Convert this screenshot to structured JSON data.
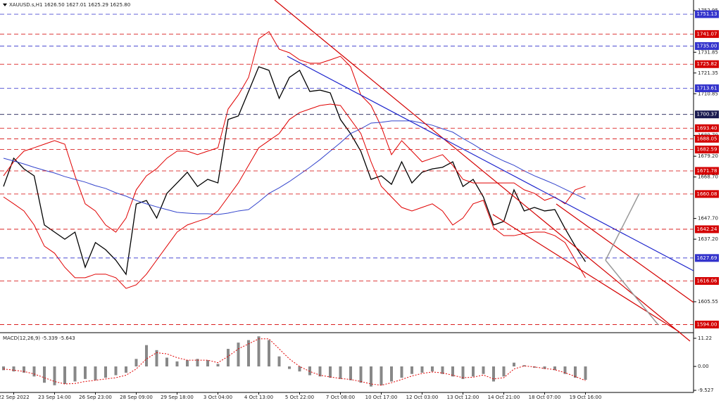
{
  "chart_data": [
    {
      "type": "line",
      "title": "XAUUSD.s,H1  1626.50 1627.01 1625.29 1625.80",
      "categories": [
        null,
        "22 Sep 2022",
        null,
        null,
        null,
        "23 Sep 14:00",
        null,
        null,
        null,
        "26 Sep 23:00",
        null,
        null,
        null,
        "28 Sep 09:00",
        null,
        null,
        null,
        "29 Sep 18:00",
        null,
        null,
        null,
        "3 Oct 04:00",
        null,
        null,
        null,
        "4 Oct 13:00",
        null,
        null,
        null,
        "5 Oct 22:00",
        null,
        null,
        null,
        "7 Oct 08:00",
        null,
        null,
        null,
        "10 Oct 17:00",
        null,
        null,
        null,
        "12 Oct 03:00",
        null,
        null,
        null,
        "13 Oct 12:00",
        null,
        null,
        null,
        "14 Oct 21:00",
        null,
        null,
        null,
        "18 Oct 07:00",
        null,
        null,
        null,
        "19 Oct 16:00"
      ],
      "series": [
        {
          "color": "#000000",
          "values": [
            1663.9,
            1678.2,
            1672.8,
            1669.3,
            1644.4,
            1640.8,
            1637.2,
            1640.8,
            1623.0,
            1635.5,
            1631.9,
            1626.6,
            1619.4,
            1655.0,
            1656.8,
            1647.9,
            1660.4,
            1665.7,
            1671.1,
            1663.9,
            1667.5,
            1665.7,
            1697.8,
            1699.6,
            1712.0,
            1724.5,
            1722.7,
            1708.5,
            1719.1,
            1722.7,
            1712.0,
            1712.7,
            1711.3,
            1697.8,
            1690.6,
            1681.7,
            1667.5,
            1669.3,
            1665.0,
            1676.4,
            1665.7,
            1671.1,
            1672.8,
            1673.6,
            1676.4,
            1663.9,
            1667.5,
            1658.6,
            1644.4,
            1646.2,
            1662.2,
            1651.5,
            1653.3,
            1651.5,
            1652.2,
            1642.6,
            1633.7,
            1625.8
          ]
        },
        {
          "color": "#e00000",
          "values": [
            1669.3,
            1676.4,
            1681.8,
            1683.5,
            1685.3,
            1687.1,
            1685.3,
            1669.3,
            1655.1,
            1651.5,
            1644.4,
            1640.8,
            1647.9,
            1662.2,
            1669.3,
            1672.9,
            1678.2,
            1681.8,
            1681.8,
            1680.0,
            1681.8,
            1683.5,
            1703.1,
            1710.2,
            1719.1,
            1738.7,
            1742.3,
            1733.4,
            1731.6,
            1728.0,
            1726.3,
            1726.3,
            1728.0,
            1729.8,
            1724.5,
            1710.2,
            1704.9,
            1694.2,
            1680.0,
            1687.1,
            1681.8,
            1676.4,
            1678.2,
            1680.0,
            1674.6,
            1667.5,
            1665.7,
            1665.7,
            1665.7,
            1665.7,
            1665.7,
            1662.2,
            1660.4,
            1656.9,
            1658.6,
            1655.1,
            1662.2,
            1664.0
          ]
        },
        {
          "color": "#e00000",
          "values": [
            1658.6,
            1655.1,
            1651.5,
            1644.4,
            1633.7,
            1630.1,
            1623.0,
            1617.7,
            1617.7,
            1619.5,
            1619.5,
            1617.7,
            1612.3,
            1614.1,
            1619.5,
            1626.6,
            1633.7,
            1640.8,
            1644.4,
            1646.2,
            1647.9,
            1651.5,
            1658.6,
            1665.7,
            1674.6,
            1683.5,
            1687.1,
            1690.7,
            1697.8,
            1701.3,
            1703.1,
            1704.9,
            1705.6,
            1704.9,
            1697.8,
            1690.7,
            1676.4,
            1664.0,
            1658.6,
            1653.3,
            1651.5,
            1653.3,
            1655.1,
            1651.5,
            1644.4,
            1647.9,
            1655.1,
            1656.9,
            1643.0,
            1639.0,
            1639.0,
            1640.1,
            1640.8,
            1640.8,
            1639.0,
            1635.5,
            1626.6,
            1617.7
          ]
        },
        {
          "color": "#3344cc",
          "values": [
            1678.2,
            1676.8,
            1675.3,
            1673.6,
            1672.1,
            1670.7,
            1668.9,
            1667.5,
            1666.1,
            1664.3,
            1662.9,
            1660.7,
            1659.0,
            1656.8,
            1655.1,
            1653.6,
            1652.2,
            1650.8,
            1650.4,
            1650.1,
            1650.1,
            1649.7,
            1650.4,
            1651.5,
            1652.2,
            1656.1,
            1660.4,
            1663.2,
            1666.4,
            1670.0,
            1673.6,
            1677.5,
            1681.8,
            1686.0,
            1690.7,
            1693.1,
            1696.0,
            1696.4,
            1697.1,
            1697.1,
            1697.1,
            1696.0,
            1694.9,
            1693.1,
            1691.4,
            1688.2,
            1685.3,
            1682.1,
            1679.3,
            1676.8,
            1674.6,
            1671.8,
            1669.3,
            1667.2,
            1665.0,
            1662.5,
            1660.0,
            1657.5
          ]
        }
      ],
      "ylim": [
        1590.95,
        1758.3
      ],
      "yticks": [
        1752.95,
        1731.85,
        1721.35,
        1710.85,
        {
          "value": 1689.7,
          "label": "1689.70"
        },
        {
          "value": 1679.2,
          "label": "1679.20"
        },
        {
          "value": 1668.7,
          "label": "1668.70"
        },
        {
          "value": 1647.7,
          "label": "1647.70"
        },
        {
          "value": 1637.2,
          "label": "1637.20"
        },
        1605.55
      ],
      "levels": [
        {
          "value": 1751.13,
          "color": "#3333cc"
        },
        {
          "value": 1741.07,
          "color": "#d40000"
        },
        {
          "value": 1735,
          "label": "1735.00",
          "color": "#3333cc"
        },
        {
          "value": 1725.82,
          "color": "#d40000"
        },
        {
          "value": 1713.61,
          "color": "#3333cc"
        },
        {
          "value": 1700.37,
          "color": "#1a1a50"
        },
        {
          "value": 1693.4,
          "label": "1693.40",
          "color": "#d40000"
        },
        {
          "value": 1688.05,
          "color": "#d40000"
        },
        {
          "value": 1682.59,
          "color": "#d40000"
        },
        {
          "value": 1671.78,
          "color": "#d40000"
        },
        {
          "value": 1660.08,
          "color": "#d40000"
        },
        {
          "value": 1642.24,
          "color": "#d40000"
        },
        {
          "value": 1627.69,
          "color": "#3333cc"
        },
        {
          "value": 1616.06,
          "color": "#d40000"
        },
        {
          "value": 1594,
          "label": "1594.00",
          "color": "#d40000"
        }
      ]
    },
    {
      "type": "bar",
      "title": "MACD(12,26,9) -5.339 -5.643",
      "color": "#888888",
      "values": [
        -1.5,
        -2.0,
        -2.5,
        -4.0,
        -6.5,
        -7.5,
        -7.0,
        -6.0,
        -5.0,
        -5.5,
        -4.5,
        -3.5,
        -2.5,
        3.0,
        8.5,
        6.5,
        3.5,
        2.0,
        2.5,
        3.0,
        2.5,
        1.0,
        7.0,
        9.5,
        10.5,
        12.0,
        10.5,
        4.0,
        -1.0,
        -2.0,
        -3.5,
        -4.0,
        -4.5,
        -5.0,
        -5.5,
        -6.5,
        -8.0,
        -7.5,
        -6.0,
        -4.5,
        -3.0,
        -2.5,
        -2.0,
        -3.0,
        -4.0,
        -5.0,
        -4.0,
        -3.0,
        -6.0,
        -4.0,
        1.5,
        0.5,
        -0.5,
        -1.0,
        -1.5,
        -3.0,
        -4.5,
        -5.339
      ],
      "line_color": "#e00000",
      "line_values": [
        -1,
        -1.5,
        -2,
        -3,
        -4.5,
        -6,
        -7,
        -6.8,
        -6,
        -5.5,
        -5,
        -4.5,
        -3.5,
        -1,
        3,
        5.5,
        5,
        3.5,
        2.5,
        2.5,
        2.5,
        1.5,
        4,
        7,
        9,
        11,
        11,
        7,
        3,
        0,
        -2,
        -3.5,
        -4.2,
        -4.8,
        -5.2,
        -6,
        -7,
        -7.5,
        -6.5,
        -5.2,
        -3.8,
        -2.8,
        -2.2,
        -2.6,
        -3.5,
        -4.5,
        -4.3,
        -3.4,
        -5,
        -4.5,
        -1,
        0.2,
        -0.2,
        -0.8,
        -1.3,
        -2.5,
        -4,
        -5.643
      ],
      "ylim": [
        -10.09,
        12.9
      ],
      "yticks": [
        11.22,
        {
          "value": 0,
          "label": "0.00"
        },
        -9.527
      ]
    }
  ]
}
